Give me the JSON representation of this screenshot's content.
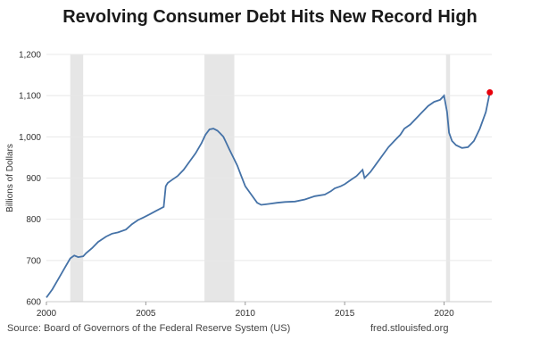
{
  "chart_data": {
    "type": "line",
    "title": "Revolving Consumer Debt Hits New Record High",
    "ylabel": "Billions of Dollars",
    "xlabel": "",
    "xlim": [
      2000,
      2022.4
    ],
    "ylim": [
      600,
      1200
    ],
    "x_ticks": [
      "2000",
      "2005",
      "2010",
      "2015",
      "2020"
    ],
    "y_ticks": [
      "600",
      "700",
      "800",
      "900",
      "1,000",
      "1,100",
      "1,200"
    ],
    "grid": true,
    "recession_shading": [
      [
        2001.2,
        2001.85
      ],
      [
        2007.95,
        2009.45
      ],
      [
        2020.1,
        2020.3
      ]
    ],
    "series": [
      {
        "name": "",
        "color": "#4572a7",
        "x": [
          2000.0,
          2000.3,
          2000.6,
          2000.9,
          2001.2,
          2001.4,
          2001.6,
          2001.85,
          2002.0,
          2002.3,
          2002.6,
          2003.0,
          2003.3,
          2003.6,
          2004.0,
          2004.3,
          2004.6,
          2004.9,
          2005.2,
          2005.5,
          2005.9,
          2006.0,
          2006.1,
          2006.3,
          2006.6,
          2006.9,
          2007.2,
          2007.5,
          2007.8,
          2008.0,
          2008.2,
          2008.4,
          2008.6,
          2008.75,
          2008.9,
          2009.0,
          2009.2,
          2009.4,
          2009.6,
          2009.8,
          2010.0,
          2010.3,
          2010.6,
          2010.8,
          2011.0,
          2011.3,
          2011.6,
          2012.0,
          2012.5,
          2013.0,
          2013.5,
          2014.0,
          2014.3,
          2014.5,
          2014.8,
          2015.0,
          2015.3,
          2015.6,
          2015.9,
          2016.0,
          2016.3,
          2016.6,
          2016.9,
          2017.2,
          2017.5,
          2017.8,
          2018.0,
          2018.3,
          2018.6,
          2018.9,
          2019.2,
          2019.5,
          2019.8,
          2020.0,
          2020.15,
          2020.25,
          2020.4,
          2020.6,
          2020.9,
          2021.2,
          2021.5,
          2021.8,
          2022.1,
          2022.3
        ],
        "y": [
          610,
          630,
          655,
          680,
          705,
          712,
          708,
          710,
          718,
          730,
          745,
          758,
          765,
          768,
          775,
          788,
          798,
          805,
          812,
          820,
          830,
          880,
          888,
          895,
          905,
          920,
          940,
          960,
          985,
          1005,
          1018,
          1020,
          1015,
          1008,
          1000,
          990,
          970,
          950,
          930,
          905,
          880,
          860,
          840,
          835,
          836,
          838,
          840,
          842,
          843,
          848,
          856,
          860,
          868,
          875,
          880,
          885,
          895,
          905,
          920,
          900,
          915,
          935,
          955,
          975,
          990,
          1005,
          1020,
          1030,
          1045,
          1060,
          1075,
          1085,
          1090,
          1100,
          1060,
          1010,
          990,
          980,
          973,
          975,
          990,
          1020,
          1060,
          1108
        ]
      }
    ],
    "highlight_point": {
      "x": 2022.3,
      "y": 1108,
      "color": "#e8000b"
    }
  },
  "footer": {
    "source": "Source: Board of Governors of the Federal Reserve System (US)",
    "site": "fred.stlouisfed.org"
  },
  "colors": {
    "line": "#4572a7",
    "recession": "#e6e6e6",
    "grid": "#e8e8e8"
  }
}
